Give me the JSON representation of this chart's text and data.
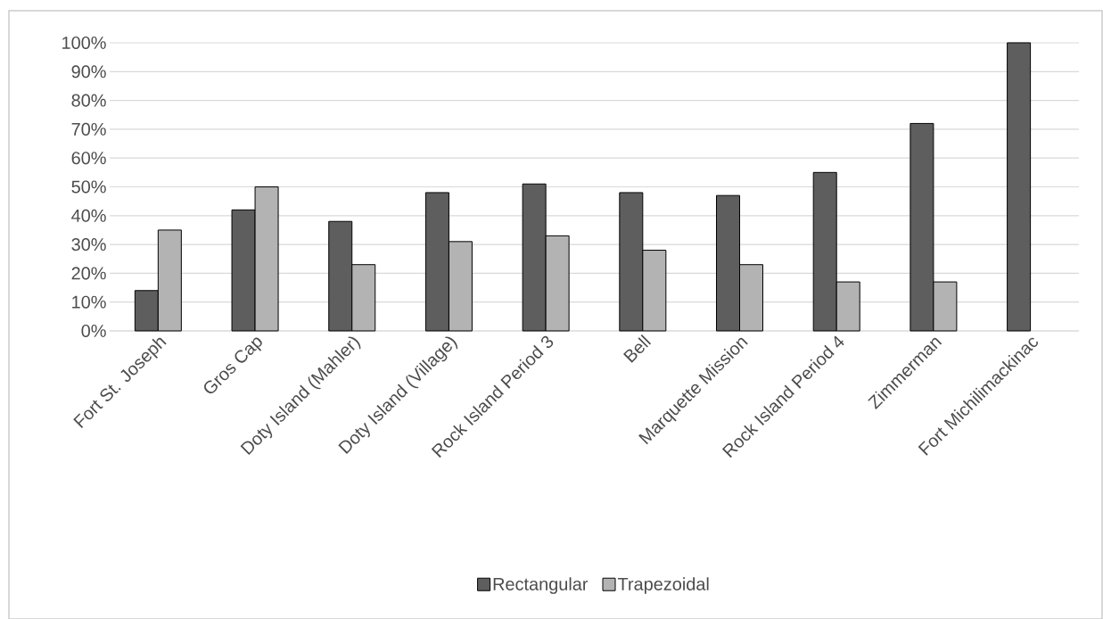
{
  "chart_data": {
    "type": "bar",
    "categories": [
      "Fort St. Joseph",
      "Gros Cap",
      "Doty Island (Mahler)",
      "Doty Island (Village)",
      "Rock Island Period 3",
      "Bell",
      "Marquette Mission",
      "Rock Island Period 4",
      "Zimmerman",
      "Fort Michilimackinac"
    ],
    "series": [
      {
        "name": "Rectangular",
        "color": "#5e5e5e",
        "values": [
          14,
          42,
          38,
          48,
          51,
          48,
          47,
          55,
          72,
          100
        ]
      },
      {
        "name": "Trapezoidal",
        "color": "#b3b3b3",
        "values": [
          35,
          50,
          23,
          31,
          33,
          28,
          23,
          17,
          17,
          null
        ]
      }
    ],
    "ylim": [
      0,
      100
    ],
    "yticks": [
      {
        "value": 0,
        "label": "0%"
      },
      {
        "value": 10,
        "label": "10%"
      },
      {
        "value": 20,
        "label": "20%"
      },
      {
        "value": 30,
        "label": "30%"
      },
      {
        "value": 40,
        "label": "40%"
      },
      {
        "value": 50,
        "label": "50%"
      },
      {
        "value": 60,
        "label": "60%"
      },
      {
        "value": 70,
        "label": "70%"
      },
      {
        "value": 80,
        "label": "80%"
      },
      {
        "value": 90,
        "label": "90%"
      },
      {
        "value": 100,
        "label": "100%"
      }
    ],
    "grid": "y",
    "legend": "bottom"
  }
}
